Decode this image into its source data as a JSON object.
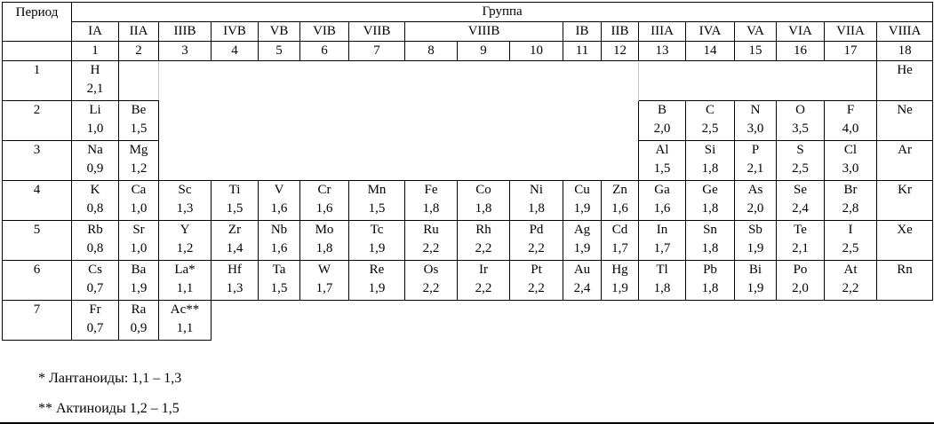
{
  "corner_label": "Период",
  "group_title": "Группа",
  "group_headers": [
    {
      "label": "IA",
      "span": 1
    },
    {
      "label": "IIA",
      "span": 1
    },
    {
      "label": "IIIB",
      "span": 1
    },
    {
      "label": "IVB",
      "span": 1
    },
    {
      "label": "VB",
      "span": 1
    },
    {
      "label": "VIB",
      "span": 1
    },
    {
      "label": "VIIB",
      "span": 1
    },
    {
      "label": "VIIIB",
      "span": 3
    },
    {
      "label": "IB",
      "span": 1
    },
    {
      "label": "IIB",
      "span": 1
    },
    {
      "label": "IIIA",
      "span": 1
    },
    {
      "label": "IVA",
      "span": 1
    },
    {
      "label": "VA",
      "span": 1
    },
    {
      "label": "VIA",
      "span": 1
    },
    {
      "label": "VIIA",
      "span": 1
    },
    {
      "label": "VIIIA",
      "span": 1
    }
  ],
  "group_numbers": [
    "1",
    "2",
    "3",
    "4",
    "5",
    "6",
    "7",
    "8",
    "9",
    "10",
    "11",
    "12",
    "13",
    "14",
    "15",
    "16",
    "17",
    "18"
  ],
  "periods": [
    {
      "num": "1",
      "cells": [
        {
          "t": "el",
          "s": "H",
          "v": "2,1"
        },
        {
          "t": "eb",
          "gr": true
        },
        {
          "t": "e"
        },
        {
          "t": "e"
        },
        {
          "t": "e"
        },
        {
          "t": "e"
        },
        {
          "t": "e"
        },
        {
          "t": "e"
        },
        {
          "t": "e"
        },
        {
          "t": "e"
        },
        {
          "t": "e"
        },
        {
          "t": "e",
          "gr": true
        },
        {
          "t": "e"
        },
        {
          "t": "e"
        },
        {
          "t": "e"
        },
        {
          "t": "e"
        },
        {
          "t": "e"
        },
        {
          "t": "el",
          "s": "He",
          "v": ""
        }
      ]
    },
    {
      "num": "2",
      "cells": [
        {
          "t": "el",
          "s": "Li",
          "v": "1,0"
        },
        {
          "t": "el",
          "s": "Be",
          "v": "1,5"
        },
        {
          "t": "e"
        },
        {
          "t": "e"
        },
        {
          "t": "e"
        },
        {
          "t": "e"
        },
        {
          "t": "e"
        },
        {
          "t": "e"
        },
        {
          "t": "e"
        },
        {
          "t": "e"
        },
        {
          "t": "e"
        },
        {
          "t": "e"
        },
        {
          "t": "el",
          "s": "B",
          "v": "2,0"
        },
        {
          "t": "el",
          "s": "C",
          "v": "2,5"
        },
        {
          "t": "el",
          "s": "N",
          "v": "3,0"
        },
        {
          "t": "el",
          "s": "O",
          "v": "3,5"
        },
        {
          "t": "el",
          "s": "F",
          "v": "4,0"
        },
        {
          "t": "el",
          "s": "Ne",
          "v": ""
        }
      ]
    },
    {
      "num": "3",
      "cells": [
        {
          "t": "el",
          "s": "Na",
          "v": "0,9"
        },
        {
          "t": "el",
          "s": "Mg",
          "v": "1,2"
        },
        {
          "t": "e"
        },
        {
          "t": "e"
        },
        {
          "t": "e"
        },
        {
          "t": "e"
        },
        {
          "t": "e"
        },
        {
          "t": "e"
        },
        {
          "t": "e"
        },
        {
          "t": "e"
        },
        {
          "t": "e"
        },
        {
          "t": "e"
        },
        {
          "t": "el",
          "s": "Al",
          "v": "1,5"
        },
        {
          "t": "el",
          "s": "Si",
          "v": "1,8"
        },
        {
          "t": "el",
          "s": "P",
          "v": "2,1"
        },
        {
          "t": "el",
          "s": "S",
          "v": "2,5"
        },
        {
          "t": "el",
          "s": "Cl",
          "v": "3,0"
        },
        {
          "t": "el",
          "s": "Ar",
          "v": ""
        }
      ]
    },
    {
      "num": "4",
      "cells": [
        {
          "t": "el",
          "s": "K",
          "v": "0,8"
        },
        {
          "t": "el",
          "s": "Ca",
          "v": "1,0"
        },
        {
          "t": "el",
          "s": "Sc",
          "v": "1,3"
        },
        {
          "t": "el",
          "s": "Ti",
          "v": "1,5"
        },
        {
          "t": "el",
          "s": "V",
          "v": "1,6"
        },
        {
          "t": "el",
          "s": "Cr",
          "v": "1,6"
        },
        {
          "t": "el",
          "s": "Mn",
          "v": "1,5"
        },
        {
          "t": "el",
          "s": "Fe",
          "v": "1,8"
        },
        {
          "t": "el",
          "s": "Co",
          "v": "1,8"
        },
        {
          "t": "el",
          "s": "Ni",
          "v": "1,8"
        },
        {
          "t": "el",
          "s": "Cu",
          "v": "1,9"
        },
        {
          "t": "el",
          "s": "Zn",
          "v": "1,6"
        },
        {
          "t": "el",
          "s": "Ga",
          "v": "1,6"
        },
        {
          "t": "el",
          "s": "Ge",
          "v": "1,8"
        },
        {
          "t": "el",
          "s": "As",
          "v": "2,0"
        },
        {
          "t": "el",
          "s": "Se",
          "v": "2,4"
        },
        {
          "t": "el",
          "s": "Br",
          "v": "2,8"
        },
        {
          "t": "el",
          "s": "Kr",
          "v": ""
        }
      ]
    },
    {
      "num": "5",
      "cells": [
        {
          "t": "el",
          "s": "Rb",
          "v": "0,8"
        },
        {
          "t": "el",
          "s": "Sr",
          "v": "1,0"
        },
        {
          "t": "el",
          "s": "Y",
          "v": "1,2"
        },
        {
          "t": "el",
          "s": "Zr",
          "v": "1,4"
        },
        {
          "t": "el",
          "s": "Nb",
          "v": "1,6"
        },
        {
          "t": "el",
          "s": "Mo",
          "v": "1,8"
        },
        {
          "t": "el",
          "s": "Tc",
          "v": "1,9"
        },
        {
          "t": "el",
          "s": "Ru",
          "v": "2,2"
        },
        {
          "t": "el",
          "s": "Rh",
          "v": "2,2"
        },
        {
          "t": "el",
          "s": "Pd",
          "v": "2,2"
        },
        {
          "t": "el",
          "s": "Ag",
          "v": "1,9"
        },
        {
          "t": "el",
          "s": "Cd",
          "v": "1,7"
        },
        {
          "t": "el",
          "s": "In",
          "v": "1,7"
        },
        {
          "t": "el",
          "s": "Sn",
          "v": "1,8"
        },
        {
          "t": "el",
          "s": "Sb",
          "v": "1,9"
        },
        {
          "t": "el",
          "s": "Te",
          "v": "2,1"
        },
        {
          "t": "el",
          "s": "I",
          "v": "2,5"
        },
        {
          "t": "el",
          "s": "Xe",
          "v": ""
        }
      ]
    },
    {
      "num": "6",
      "cells": [
        {
          "t": "el",
          "s": "Cs",
          "v": "0,7"
        },
        {
          "t": "el",
          "s": "Ba",
          "v": "1,9"
        },
        {
          "t": "el",
          "s": "La*",
          "v": "1,1"
        },
        {
          "t": "el",
          "s": "Hf",
          "v": "1,3"
        },
        {
          "t": "el",
          "s": "Ta",
          "v": "1,5"
        },
        {
          "t": "el",
          "s": "W",
          "v": "1,7"
        },
        {
          "t": "el",
          "s": "Re",
          "v": "1,9"
        },
        {
          "t": "el",
          "s": "Os",
          "v": "2,2"
        },
        {
          "t": "el",
          "s": "Ir",
          "v": "2,2"
        },
        {
          "t": "el",
          "s": "Pt",
          "v": "2,2"
        },
        {
          "t": "el",
          "s": "Au",
          "v": "2,4"
        },
        {
          "t": "el",
          "s": "Hg",
          "v": "1,9"
        },
        {
          "t": "el",
          "s": "Tl",
          "v": "1,8"
        },
        {
          "t": "el",
          "s": "Pb",
          "v": "1,8"
        },
        {
          "t": "el",
          "s": "Bi",
          "v": "1,9"
        },
        {
          "t": "el",
          "s": "Po",
          "v": "2,0"
        },
        {
          "t": "el",
          "s": "At",
          "v": "2,2"
        },
        {
          "t": "el",
          "s": "Rn",
          "v": ""
        }
      ]
    },
    {
      "num": "7",
      "cells": [
        {
          "t": "el",
          "s": "Fr",
          "v": "0,7"
        },
        {
          "t": "el",
          "s": "Ra",
          "v": "0,9"
        },
        {
          "t": "el",
          "s": "Ac**",
          "v": "1,1"
        },
        {
          "t": "e"
        },
        {
          "t": "e"
        },
        {
          "t": "e"
        },
        {
          "t": "e"
        },
        {
          "t": "e"
        },
        {
          "t": "e"
        },
        {
          "t": "e"
        },
        {
          "t": "e"
        },
        {
          "t": "e"
        },
        {
          "t": "e"
        },
        {
          "t": "e"
        },
        {
          "t": "e"
        },
        {
          "t": "e"
        },
        {
          "t": "e"
        },
        {
          "t": "e"
        }
      ]
    }
  ],
  "footnotes": [
    "* Лантаноиды: 1,1 – 1,3",
    "** Актиноиды 1,2 – 1,5"
  ],
  "colors": {
    "table_border": "#000000",
    "grid_line_gray": "#c6c6c6",
    "text": "#000000",
    "background": "#ffffff"
  }
}
